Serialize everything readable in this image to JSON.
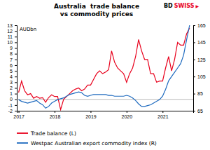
{
  "chart_data": {
    "type": "line",
    "title": "Australia  trade balance",
    "subtitle": "vs commodity prices",
    "ylabel": "AUDbn",
    "annotations": [
      {
        "text": "BD",
        "color": "#000000"
      },
      {
        "text": "SWISS",
        "color": "#e8001c"
      },
      {
        "text": "▶",
        "color": "#e8001c"
      }
    ],
    "x": [
      2017.0,
      2017.083,
      2017.167,
      2017.25,
      2017.333,
      2017.417,
      2017.5,
      2017.583,
      2017.667,
      2017.75,
      2017.833,
      2017.917,
      2018.0,
      2018.083,
      2018.167,
      2018.25,
      2018.333,
      2018.417,
      2018.5,
      2018.583,
      2018.667,
      2018.75,
      2018.833,
      2018.917,
      2019.0,
      2019.083,
      2019.167,
      2019.25,
      2019.333,
      2019.417,
      2019.5,
      2019.583,
      2019.667,
      2019.75,
      2019.833,
      2019.917,
      2020.0,
      2020.083,
      2020.167,
      2020.25,
      2020.333,
      2020.417,
      2020.5,
      2020.583,
      2020.667,
      2020.75,
      2020.833,
      2020.917,
      2021.0,
      2021.083,
      2021.167,
      2021.25,
      2021.333,
      2021.417,
      2021.5,
      2021.583,
      2021.667,
      2021.75
    ],
    "series": [
      {
        "name": "Trade balance (L)",
        "color": "#e8001c",
        "axis": "y",
        "values": [
          1.2,
          3.2,
          1.5,
          0.8,
          1.0,
          0.2,
          0.5,
          0.2,
          0.3,
          -0.5,
          0.3,
          0.8,
          0.5,
          0.5,
          -1.8,
          0.0,
          0.5,
          1.0,
          1.5,
          1.8,
          2.0,
          1.5,
          1.8,
          2.5,
          2.5,
          3.5,
          4.5,
          5.0,
          4.5,
          4.8,
          5.2,
          8.5,
          6.5,
          5.5,
          5.0,
          4.5,
          3.0,
          4.5,
          5.5,
          7.5,
          10.5,
          8.5,
          7.0,
          7.0,
          4.5,
          4.5,
          3.0,
          3.2,
          3.2,
          5.5,
          7.5,
          5.0,
          7.0,
          10.0,
          9.5,
          9.5,
          11.5,
          12.5
        ]
      },
      {
        "name": "Westpac Australian export commodity index (R)",
        "color": "#1e6abf",
        "axis": "y2",
        "values": [
          78,
          76,
          75,
          74,
          75,
          76,
          77,
          74,
          72,
          68,
          70,
          74,
          76,
          78,
          79,
          80,
          82,
          84,
          85,
          86,
          87,
          86,
          83,
          82,
          83,
          84,
          84,
          84,
          84,
          84,
          83,
          83,
          82,
          82,
          82,
          82,
          83,
          82,
          80,
          77,
          73,
          70,
          70,
          71,
          72,
          74,
          76,
          78,
          82,
          90,
          100,
          105,
          110,
          115,
          120,
          130,
          148,
          165
        ]
      }
    ],
    "xlim": [
      2016.95,
      2021.85
    ],
    "xticks": [
      2017,
      2018,
      2019,
      2020,
      2021
    ],
    "ylim": [
      -2,
      13
    ],
    "yticks": [
      -2,
      -1,
      0,
      1,
      2,
      3,
      4,
      5,
      6,
      7,
      8,
      9,
      10,
      11,
      12,
      13
    ],
    "y2lim": [
      65,
      165
    ],
    "y2ticks": [
      65,
      85,
      105,
      125,
      145,
      165
    ],
    "grid": false,
    "legend": "lower left"
  }
}
